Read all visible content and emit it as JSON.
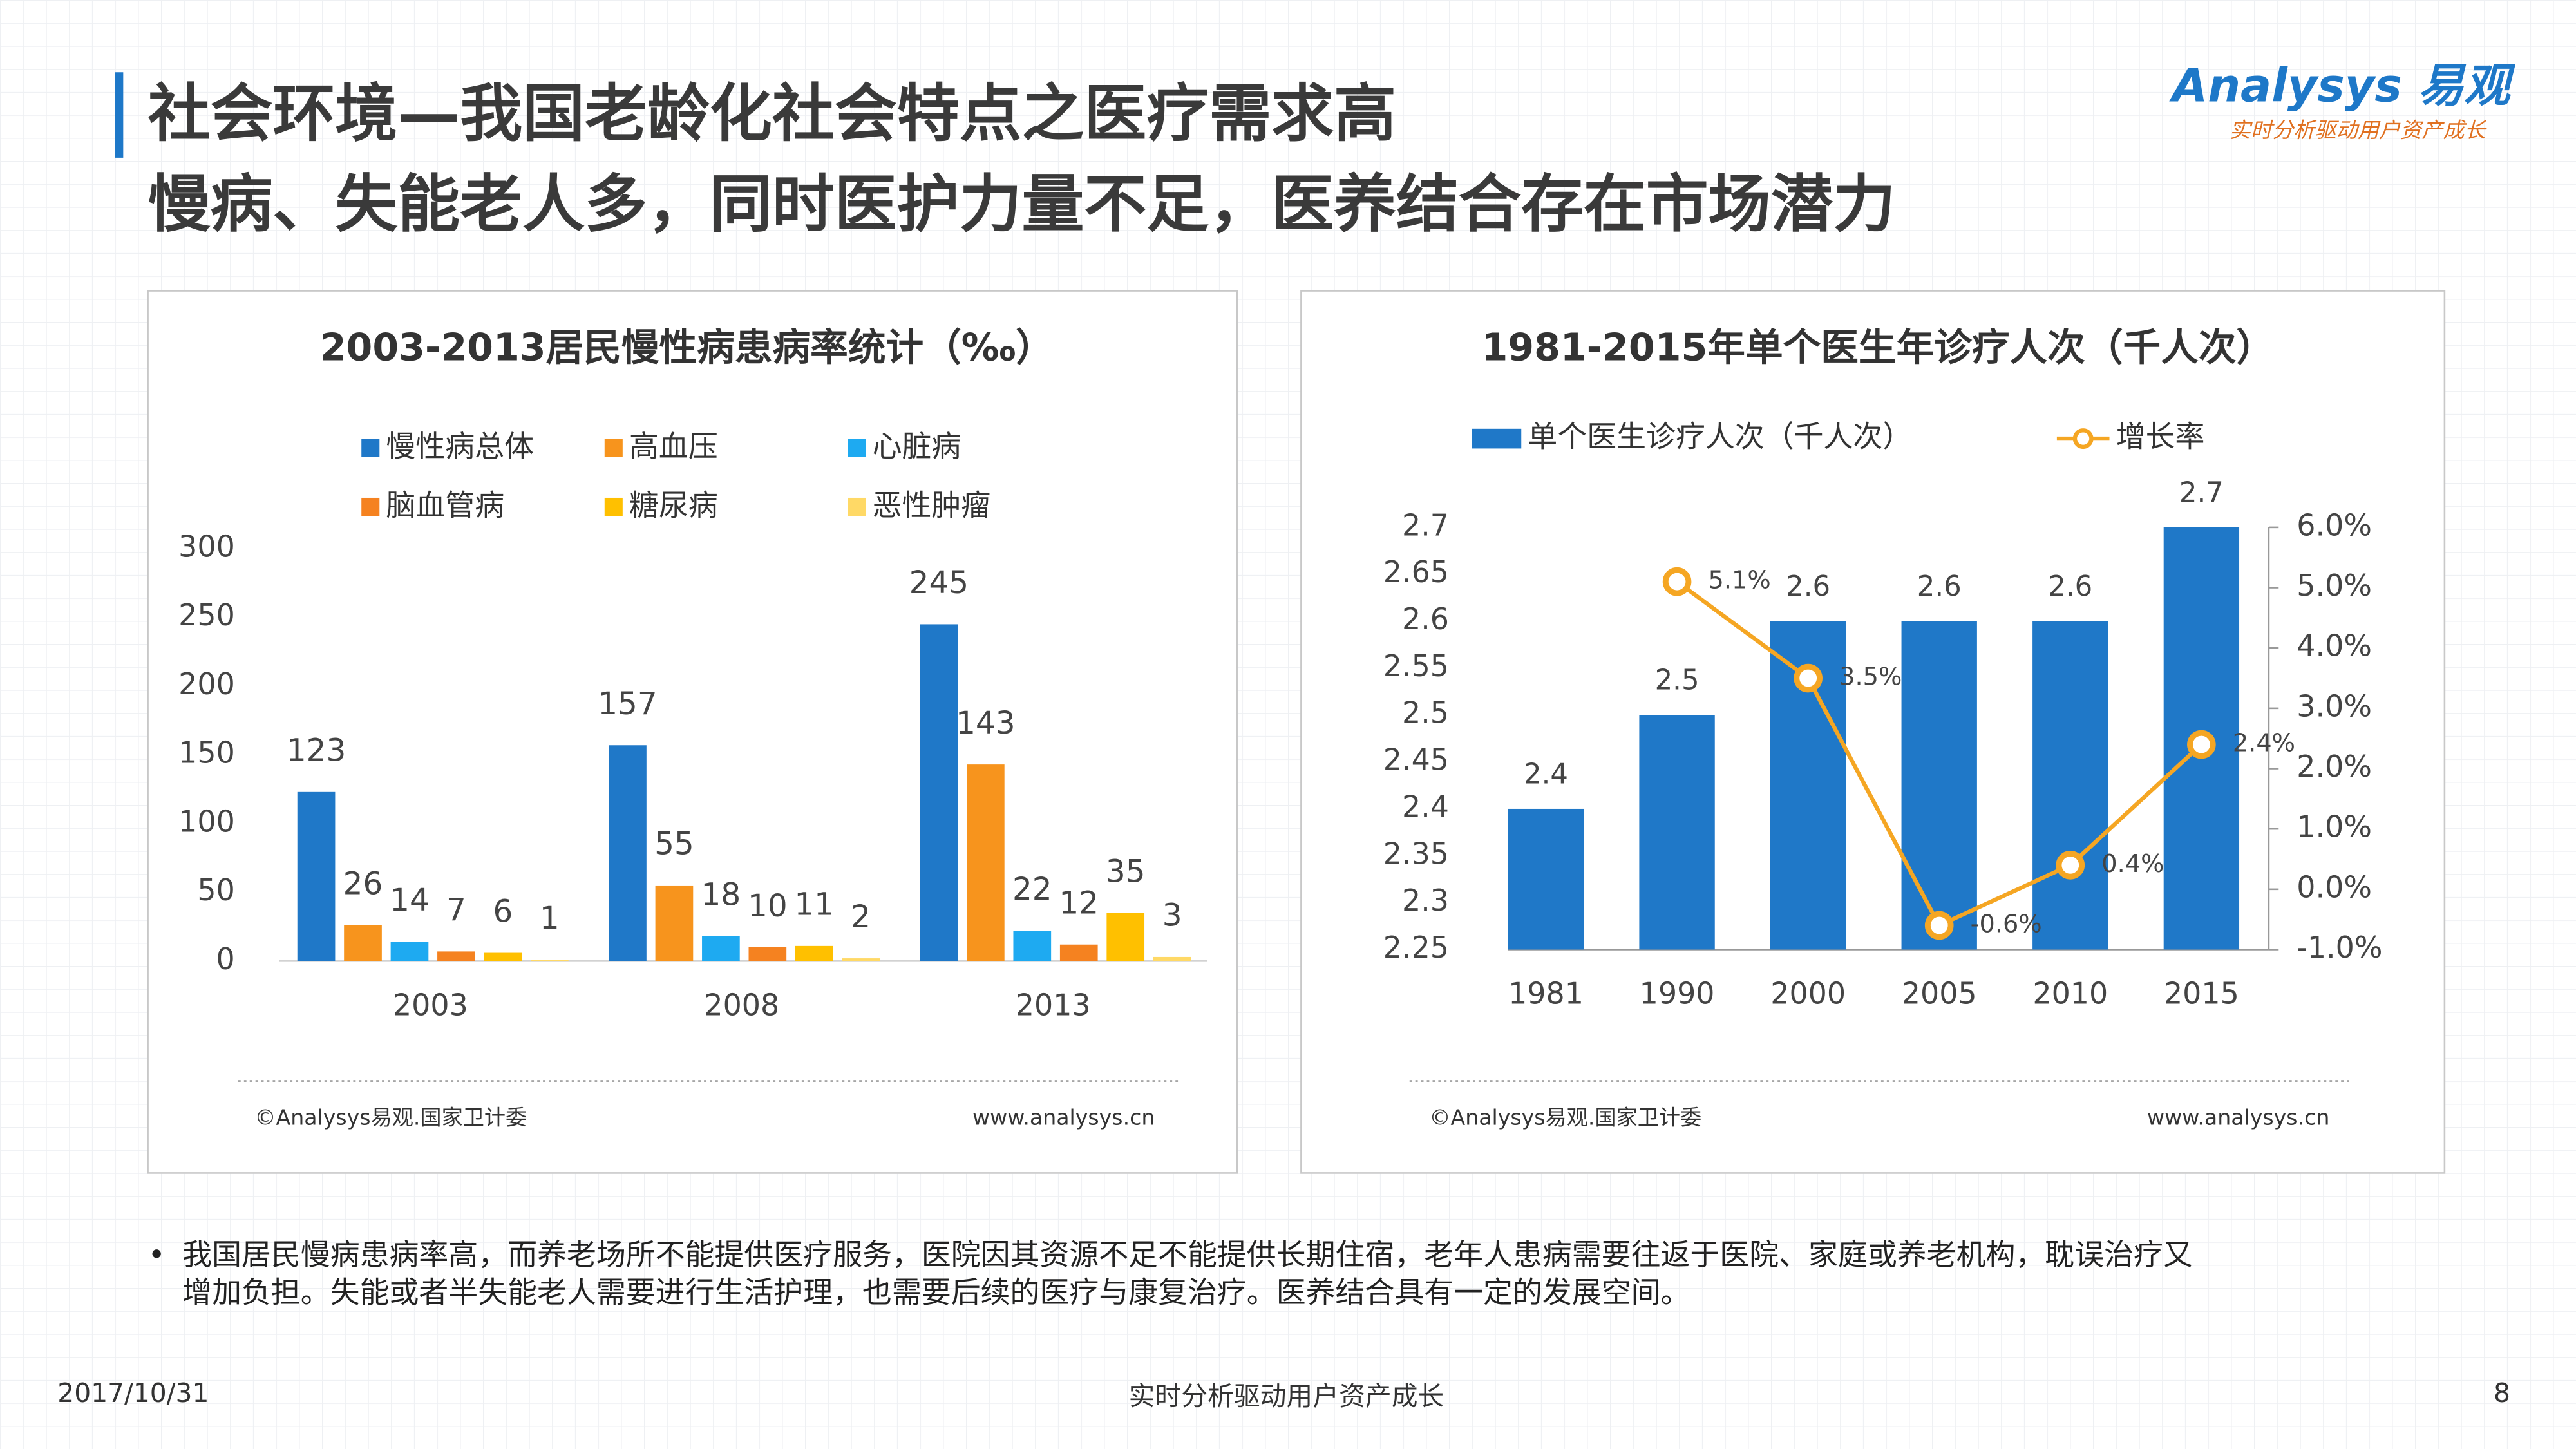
{
  "header": {
    "title": "社会环境—我国老龄化社会特点之医疗需求高",
    "subtitle": "慢病、失能老人多，同时医护力量不足，医养结合存在市场潜力",
    "logo": "Analysys 易观",
    "tagline": "实时分析驱动用户资产成长"
  },
  "chart_data": [
    {
      "type": "bar",
      "title": "2003-2013居民慢性病患病率统计（‰）",
      "categories": [
        "2003",
        "2008",
        "2013"
      ],
      "series": [
        {
          "name": "慢性病总体",
          "color": "#1f78c8",
          "values": [
            123,
            157,
            245
          ]
        },
        {
          "name": "高血压",
          "color": "#f7941d",
          "values": [
            26,
            55,
            143
          ]
        },
        {
          "name": "心脏病",
          "color": "#1eaaf1",
          "values": [
            14,
            18,
            22
          ]
        },
        {
          "name": "脑血管病",
          "color": "#f58220",
          "values": [
            7,
            10,
            12
          ]
        },
        {
          "name": "糖尿病",
          "color": "#ffc000",
          "values": [
            6,
            11,
            35
          ]
        },
        {
          "name": "恶性肿瘤",
          "color": "#ffd966",
          "values": [
            1,
            2,
            3
          ]
        }
      ],
      "ylim": [
        0,
        300
      ],
      "yticks": [
        0,
        50,
        100,
        150,
        200,
        250,
        300
      ],
      "source": "©Analysys易观.国家卫计委",
      "website": "www.analysys.cn"
    },
    {
      "type": "combo",
      "title": "1981-2015年单个医生年诊疗人次（千人次）",
      "categories": [
        "1981",
        "1990",
        "2000",
        "2005",
        "2010",
        "2015"
      ],
      "series": [
        {
          "name": "单个医生诊疗人次（千人次）",
          "color": "#1f78c8",
          "values": [
            2.4,
            2.5,
            2.6,
            2.6,
            2.6,
            2.7
          ]
        },
        {
          "name": "增长率",
          "color": "#f5a623",
          "axis": "y2",
          "values": [
            null,
            5.1,
            3.5,
            -0.6,
            0.4,
            2.4
          ],
          "value_labels": [
            null,
            "5.1%",
            "3.5%",
            "-0.6%",
            "0.4%",
            "2.4%"
          ]
        }
      ],
      "ylim": [
        2.25,
        2.7
      ],
      "yticks": [
        2.25,
        2.3,
        2.35,
        2.4,
        2.45,
        2.5,
        2.55,
        2.6,
        2.65,
        2.7
      ],
      "y2lim": [
        -1,
        6
      ],
      "y2ticks": [
        {
          "value": -1,
          "label": "-1.0%"
        },
        {
          "value": 0,
          "label": "0.0%"
        },
        {
          "value": 1,
          "label": "1.0%"
        },
        {
          "value": 2,
          "label": "2.0%"
        },
        {
          "value": 3,
          "label": "3.0%"
        },
        {
          "value": 4,
          "label": "4.0%"
        },
        {
          "value": 5,
          "label": "5.0%"
        },
        {
          "value": 6,
          "label": "6.0%"
        }
      ],
      "source": "©Analysys易观.国家卫计委",
      "website": "www.analysys.cn"
    }
  ],
  "bullet": [
    "我国居民慢病患病率高，而养老场所不能提供医疗服务，医院因其资源不足不能提供长期住宿，老年人患病需要往返于医院、家庭或养老机构，耽误治疗又",
    "增加负担。失能或者半失能老人需要进行生活护理，也需要后续的医疗与康复治疗。医养结合具有一定的发展空间。"
  ],
  "footer": {
    "date": "2017/10/31",
    "slogan": "实时分析驱动用户资产成长",
    "page": "8"
  }
}
